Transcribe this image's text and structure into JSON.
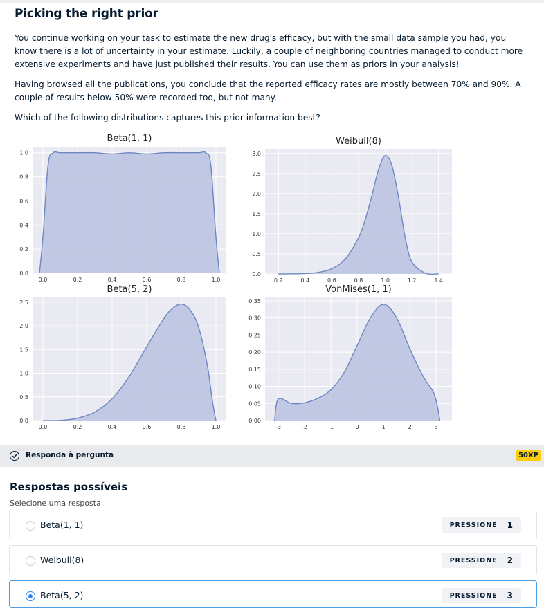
{
  "exercise": {
    "title": "Picking the right prior",
    "paragraphs": [
      "You continue working on your task to estimate the new drug's efficacy, but with the small data sample you had, you know there is a lot of uncertainty in your estimate. Luckily, a couple of neighboring countries managed to conduct more extensive experiments and have just published their results. You can use them as priors in your analysis!",
      "Having browsed all the publications, you conclude that the reported efficacy rates are mostly between 70% and 90%. A couple of results below 50% were recorded too, but not many.",
      "Which of the following distributions captures this prior information best?"
    ]
  },
  "chart_data": [
    {
      "type": "area",
      "title": "Beta(1, 1)",
      "xticks": [
        "0.0",
        "0.2",
        "0.4",
        "0.6",
        "0.8",
        "1.0"
      ],
      "yticks": [
        "0.0",
        "0.2",
        "0.4",
        "0.6",
        "0.8",
        "1.0"
      ],
      "xlim": [
        -0.06,
        1.06
      ],
      "ylim": [
        0,
        1.05
      ],
      "x": [
        -0.02,
        0.0,
        0.03,
        0.06,
        0.1,
        0.2,
        0.3,
        0.4,
        0.5,
        0.6,
        0.7,
        0.8,
        0.9,
        0.94,
        0.97,
        1.0,
        1.02
      ],
      "y": [
        0.0,
        0.3,
        0.9,
        1.0,
        1.0,
        1.0,
        1.0,
        0.99,
        1.0,
        0.99,
        1.0,
        1.0,
        1.0,
        1.0,
        0.9,
        0.3,
        0.0
      ]
    },
    {
      "type": "area",
      "title": "Weibull(8)",
      "xticks": [
        "0.2",
        "0.4",
        "0.6",
        "0.8",
        "1.0",
        "1.2",
        "1.4"
      ],
      "yticks": [
        "0.0",
        "0.5",
        "1.0",
        "1.5",
        "2.0",
        "2.5",
        "3.0"
      ],
      "xlim": [
        0.1,
        1.5
      ],
      "ylim": [
        0,
        3.1
      ],
      "x": [
        0.2,
        0.4,
        0.5,
        0.6,
        0.7,
        0.8,
        0.85,
        0.9,
        0.95,
        1.0,
        1.05,
        1.1,
        1.15,
        1.2,
        1.3,
        1.4
      ],
      "y": [
        0.0,
        0.01,
        0.04,
        0.13,
        0.37,
        0.9,
        1.35,
        1.95,
        2.6,
        2.95,
        2.7,
        1.9,
        0.9,
        0.3,
        0.02,
        0.0
      ]
    },
    {
      "type": "area",
      "title": "Beta(5, 2)",
      "xticks": [
        "0.0",
        "0.2",
        "0.4",
        "0.6",
        "0.8",
        "1.0"
      ],
      "yticks": [
        "0.0",
        "0.5",
        "1.0",
        "1.5",
        "2.0",
        "2.5"
      ],
      "xlim": [
        -0.06,
        1.06
      ],
      "ylim": [
        0,
        2.6
      ],
      "x": [
        0.0,
        0.1,
        0.2,
        0.3,
        0.4,
        0.5,
        0.6,
        0.7,
        0.75,
        0.8,
        0.85,
        0.9,
        0.95,
        0.98,
        1.0
      ],
      "y": [
        0.0,
        0.003,
        0.05,
        0.18,
        0.46,
        0.94,
        1.56,
        2.16,
        2.37,
        2.46,
        2.34,
        1.97,
        1.17,
        0.4,
        0.0
      ]
    },
    {
      "type": "area",
      "title": "VonMises(1, 1)",
      "xticks": [
        "-3",
        "-2",
        "-1",
        "0",
        "1",
        "2",
        "3"
      ],
      "yticks": [
        "0.00",
        "0.05",
        "0.10",
        "0.15",
        "0.20",
        "0.25",
        "0.30",
        "0.35"
      ],
      "xlim": [
        -3.5,
        3.6
      ],
      "ylim": [
        0,
        0.36
      ],
      "x": [
        -3.14,
        -3.0,
        -2.5,
        -2.0,
        -1.5,
        -1.0,
        -0.5,
        0.0,
        0.5,
        1.0,
        1.5,
        2.0,
        2.5,
        2.9,
        3.05,
        3.14
      ],
      "y": [
        0.0,
        0.063,
        0.05,
        0.052,
        0.065,
        0.09,
        0.14,
        0.22,
        0.3,
        0.34,
        0.3,
        0.21,
        0.13,
        0.082,
        0.04,
        0.0
      ]
    }
  ],
  "colors": {
    "fill": "#b9c2e0",
    "line": "#6d87c2",
    "plot_bg": "#eaeaf2",
    "accent": "#2f80ed",
    "xp": "#fcce0d"
  },
  "answer_bar": {
    "label": "Responda à pergunta",
    "xp": "50XP",
    "icon": "check-circle-icon"
  },
  "answers": {
    "title": "Respostas possíveis",
    "subtitle": "Selecione uma resposta",
    "key_word": "PRESSIONE",
    "options": [
      {
        "label": "Beta(1, 1)",
        "key": "1",
        "selected": false
      },
      {
        "label": "Weibull(8)",
        "key": "2",
        "selected": false
      },
      {
        "label": "Beta(5, 2)",
        "key": "3",
        "selected": true
      }
    ]
  }
}
